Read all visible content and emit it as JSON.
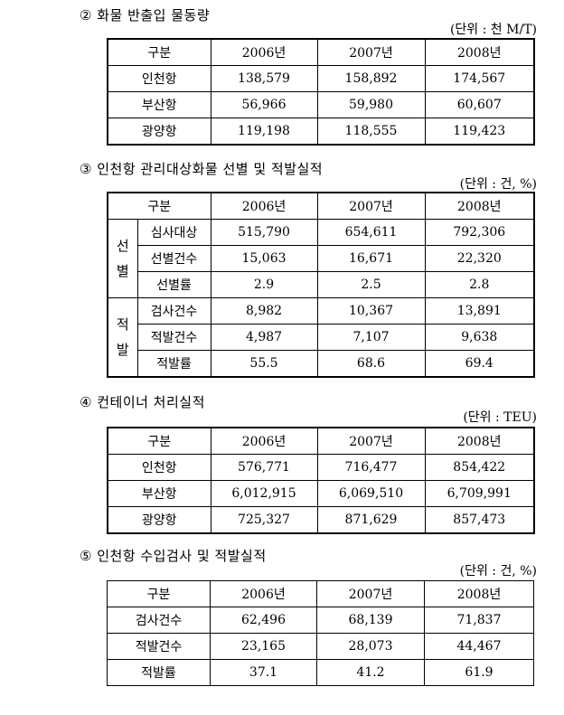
{
  "sections": [
    {
      "title": "② 화물 반출입 물동량",
      "unit": "(단위 : 천 M/T)",
      "headers": [
        "구분",
        "2006년",
        "2007년",
        "2008년"
      ],
      "rows": [
        [
          "인천항",
          "138,579",
          "158,892",
          "174,567"
        ],
        [
          "부산항",
          "56,966",
          "59,980",
          "60,607"
        ],
        [
          "광양항",
          "119,198",
          "118,555",
          "119,423"
        ]
      ]
    },
    {
      "title": "③ 인천항 관리대상화물 선별 및 적발실적",
      "unit": "(단위 : 건, %)",
      "headers": [
        "구분",
        "2006년",
        "2007년",
        "2008년"
      ],
      "groups": [
        {
          "label": "선별",
          "rows": [
            [
              "심사대상",
              "515,790",
              "654,611",
              "792,306"
            ],
            [
              "선별건수",
              "15,063",
              "16,671",
              "22,320"
            ],
            [
              "선별률",
              "2.9",
              "2.5",
              "2.8"
            ]
          ]
        },
        {
          "label": "적발",
          "rows": [
            [
              "검사건수",
              "8,982",
              "10,367",
              "13,891"
            ],
            [
              "적발건수",
              "4,987",
              "7,107",
              "9,638"
            ],
            [
              "적발률",
              "55.5",
              "68.6",
              "69.4"
            ]
          ]
        }
      ]
    },
    {
      "title": "④ 컨테이너 처리실적",
      "unit": "(단위 : TEU)",
      "headers": [
        "구분",
        "2006년",
        "2007년",
        "2008년"
      ],
      "rows": [
        [
          "인천항",
          "576,771",
          "716,477",
          "854,422"
        ],
        [
          "부산항",
          "6,012,915",
          "6,069,510",
          "6,709,991"
        ],
        [
          "광양항",
          "725,327",
          "871,629",
          "857,473"
        ]
      ]
    },
    {
      "title": "⑤ 인천항 수입검사 및 적발실적",
      "unit": "(단위 : 건, %)",
      "headers": [
        "구분",
        "2006년",
        "2007년",
        "2008년"
      ],
      "rows": [
        [
          "검사건수",
          "62,496",
          "68,139",
          "71,837"
        ],
        [
          "적발건수",
          "23,165",
          "28,073",
          "44,467"
        ],
        [
          "적발률",
          "37.1",
          "41.2",
          "61.9"
        ]
      ]
    }
  ]
}
